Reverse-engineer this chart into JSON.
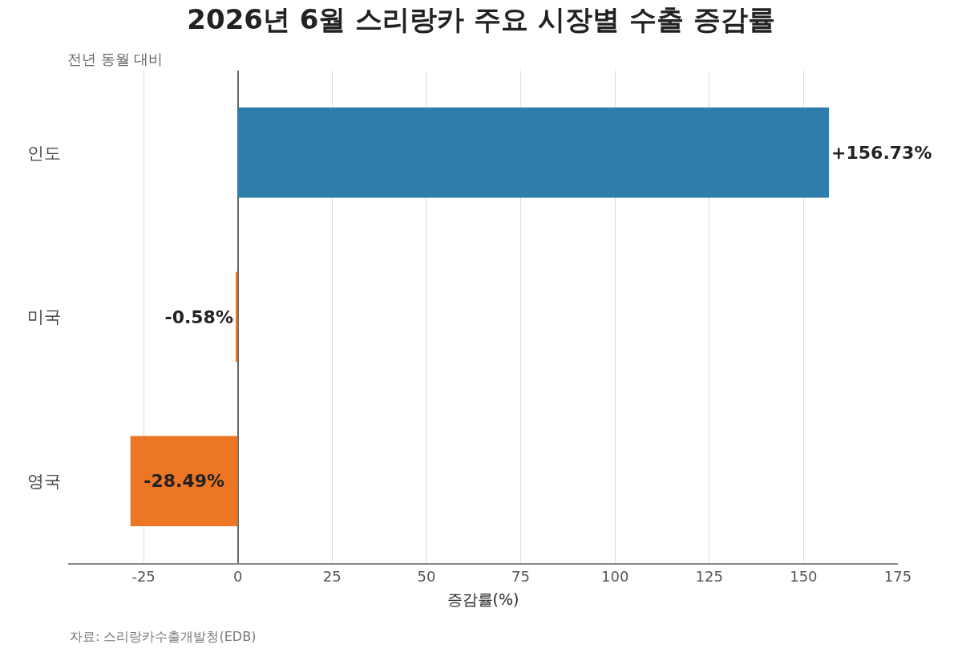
{
  "chart_data": {
    "type": "bar",
    "orientation": "horizontal",
    "title": "2026년 6월 스리랑카 주요 시장별 수출 증감률",
    "subtitle": "전년 동월 대비",
    "xlabel": "증감률(%)",
    "categories": [
      "인도",
      "미국",
      "영국"
    ],
    "values": [
      156.73,
      -0.58,
      -28.49
    ],
    "colors": [
      "#2e7dab",
      "#ed7625",
      "#ed7625"
    ],
    "value_labels": [
      "+156.73%",
      "-0.58%",
      "-28.49%"
    ],
    "xlim": [
      -45,
      175
    ],
    "xticks": [
      -25,
      0,
      25,
      50,
      75,
      100,
      125,
      150,
      175
    ],
    "grid": "x",
    "annotations": [
      "자료: 스리랑카수출개발청(EDB)"
    ]
  }
}
